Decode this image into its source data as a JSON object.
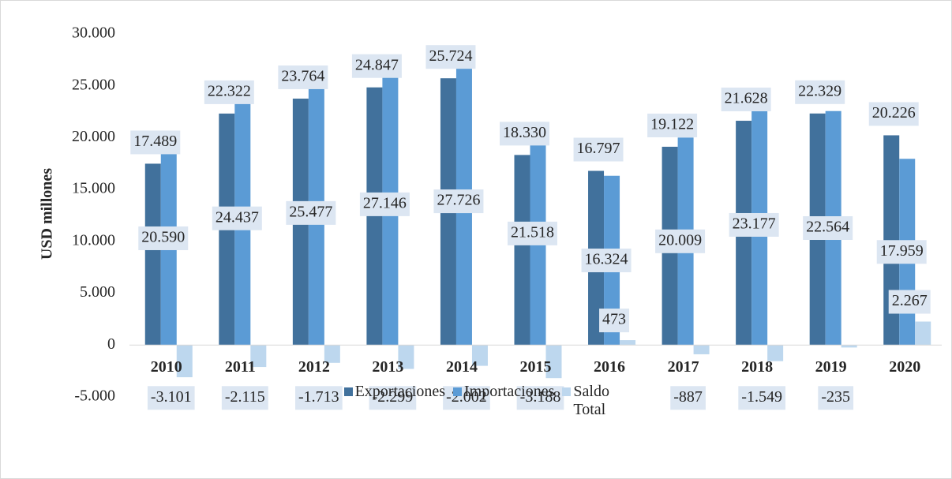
{
  "chart_data": {
    "type": "bar",
    "ylabel": "USD millones",
    "categories": [
      "2010",
      "2011",
      "2012",
      "2013",
      "2014",
      "2015",
      "2016",
      "2017",
      "2018",
      "2019",
      "2020"
    ],
    "series": [
      {
        "name": "Exportaciones",
        "color": "#41719c",
        "values": [
          17489,
          22322,
          23764,
          24847,
          25724,
          18330,
          16797,
          19122,
          21628,
          22329,
          20226
        ],
        "value_labels": [
          "17.489",
          "22.322",
          "23.764",
          "24.847",
          "25.724",
          "18.330",
          "16.797",
          "19.122",
          "21.628",
          "22.329",
          "20.226"
        ]
      },
      {
        "name": "Importaciones",
        "color": "#5b9bd5",
        "values": [
          20590,
          24437,
          25477,
          27146,
          27726,
          21518,
          16324,
          20009,
          23177,
          22564,
          17959
        ],
        "value_labels": [
          "20.590",
          "24.437",
          "25.477",
          "27.146",
          "27.726",
          "21.518",
          "16.324",
          "20.009",
          "23.177",
          "22.564",
          "17.959"
        ]
      },
      {
        "name": "Saldo Total",
        "color": "#bdd7ee",
        "values": [
          -3101,
          -2115,
          -1713,
          -2299,
          -2002,
          -3188,
          473,
          -887,
          -1549,
          -235,
          2267
        ],
        "value_labels": [
          "-3.101",
          "-2.115",
          "-1.713",
          "-2.299",
          "-2.002",
          "-3.188",
          "473",
          "-887",
          "-1.549",
          "-235",
          "2.267"
        ]
      }
    ],
    "ylim": [
      -5000,
      30000
    ],
    "yticks": [
      {
        "value": -5000,
        "label": "-5.000"
      },
      0,
      {
        "value": 5000,
        "label": "5.000"
      },
      {
        "value": 10000,
        "label": "10.000"
      },
      {
        "value": 15000,
        "label": "15.000"
      },
      {
        "value": 20000,
        "label": "20.000"
      },
      {
        "value": 25000,
        "label": "25.000"
      },
      {
        "value": 30000,
        "label": "30.000"
      }
    ],
    "grid": false,
    "legend": "bottom"
  }
}
